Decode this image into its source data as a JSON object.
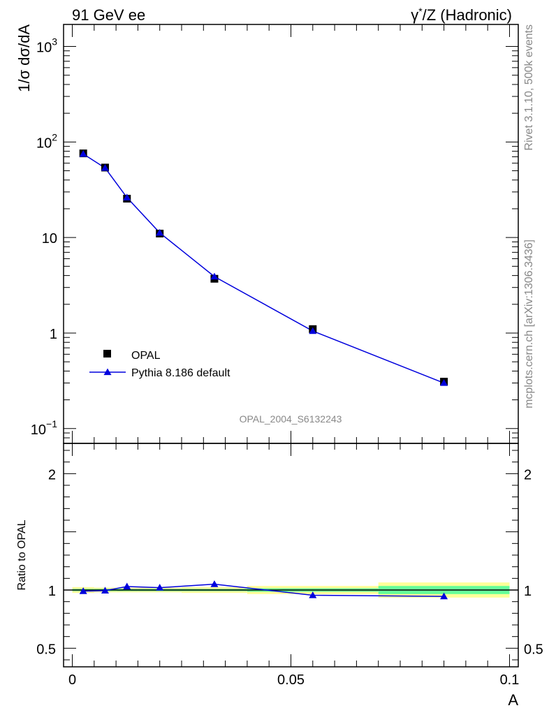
{
  "header": {
    "left": "91 GeV ee",
    "right_sup_gamma": "γ",
    "right_sup_star": "*",
    "right_rest": "/Z (Hadronic)"
  },
  "side_labels": {
    "rivet": "Rivet 3.1.10,  500k events",
    "mcplots": "mcplots.cern.ch [arXiv:1306.3436]"
  },
  "watermark": "OPAL_2004_S6132243",
  "chart_data": [
    {
      "type": "line",
      "ylabel": "1/σ dσ/dA",
      "yscale": "log",
      "ylim": [
        0.07,
        1700
      ],
      "xlim": [
        -0.002,
        0.102
      ],
      "y_tick_labels": [
        {
          "value": 0.1,
          "base": "10",
          "exp": "−1"
        },
        {
          "value": 1,
          "base": "1",
          "exp": ""
        },
        {
          "value": 10,
          "base": "10",
          "exp": ""
        },
        {
          "value": 100,
          "base": "10",
          "exp": "2"
        },
        {
          "value": 1000,
          "base": "10",
          "exp": "3"
        }
      ],
      "legend": {
        "position": "lower-left",
        "entries": [
          "OPAL",
          "Pythia 8.186 default"
        ]
      },
      "series": [
        {
          "name": "OPAL",
          "marker": "square",
          "color": "#000000",
          "x": [
            0.0025,
            0.0075,
            0.0125,
            0.02,
            0.0325,
            0.055,
            0.085
          ],
          "y": [
            76,
            54,
            25.5,
            11,
            3.7,
            1.1,
            0.31
          ]
        },
        {
          "name": "Pythia 8.186 default",
          "marker": "triangle",
          "color": "#0000dd",
          "x": [
            0.0025,
            0.0075,
            0.0125,
            0.02,
            0.0325,
            0.055,
            0.085
          ],
          "y": [
            75,
            53.5,
            26.2,
            11.2,
            3.9,
            1.05,
            0.3
          ]
        }
      ]
    },
    {
      "type": "line",
      "ylabel": "Ratio to OPAL",
      "xlabel": "A",
      "ylim": [
        0.34,
        2.26
      ],
      "xlim": [
        -0.002,
        0.102
      ],
      "y_tick_labels": [
        {
          "value": 0.5,
          "text": "0.5"
        },
        {
          "value": 1,
          "text": "1"
        },
        {
          "value": 2,
          "text": "2"
        }
      ],
      "x_tick_labels": [
        {
          "value": 0,
          "text": "0"
        },
        {
          "value": 0.05,
          "text": "0.05"
        },
        {
          "value": 0.1,
          "text": "0.1"
        }
      ],
      "bands": [
        {
          "x0": 0.0,
          "x1": 0.005,
          "stat": 0.01,
          "total": 0.025
        },
        {
          "x0": 0.005,
          "x1": 0.01,
          "stat": 0.01,
          "total": 0.02
        },
        {
          "x0": 0.01,
          "x1": 0.015,
          "stat": 0.01,
          "total": 0.02
        },
        {
          "x0": 0.015,
          "x1": 0.025,
          "stat": 0.01,
          "total": 0.02
        },
        {
          "x0": 0.025,
          "x1": 0.04,
          "stat": 0.01,
          "total": 0.025
        },
        {
          "x0": 0.04,
          "x1": 0.07,
          "stat": 0.015,
          "total": 0.035
        },
        {
          "x0": 0.07,
          "x1": 0.1,
          "stat": 0.035,
          "total": 0.065
        }
      ],
      "band_colors": {
        "stat": "#66ff99",
        "total": "#ffff99"
      },
      "series": [
        {
          "name": "Pythia 8.186 default",
          "marker": "triangle",
          "color": "#0000dd",
          "x": [
            0.0025,
            0.0075,
            0.0125,
            0.02,
            0.0325,
            0.055,
            0.085
          ],
          "y": [
            0.99,
            0.995,
            1.03,
            1.02,
            1.05,
            0.955,
            0.945
          ]
        }
      ]
    }
  ]
}
